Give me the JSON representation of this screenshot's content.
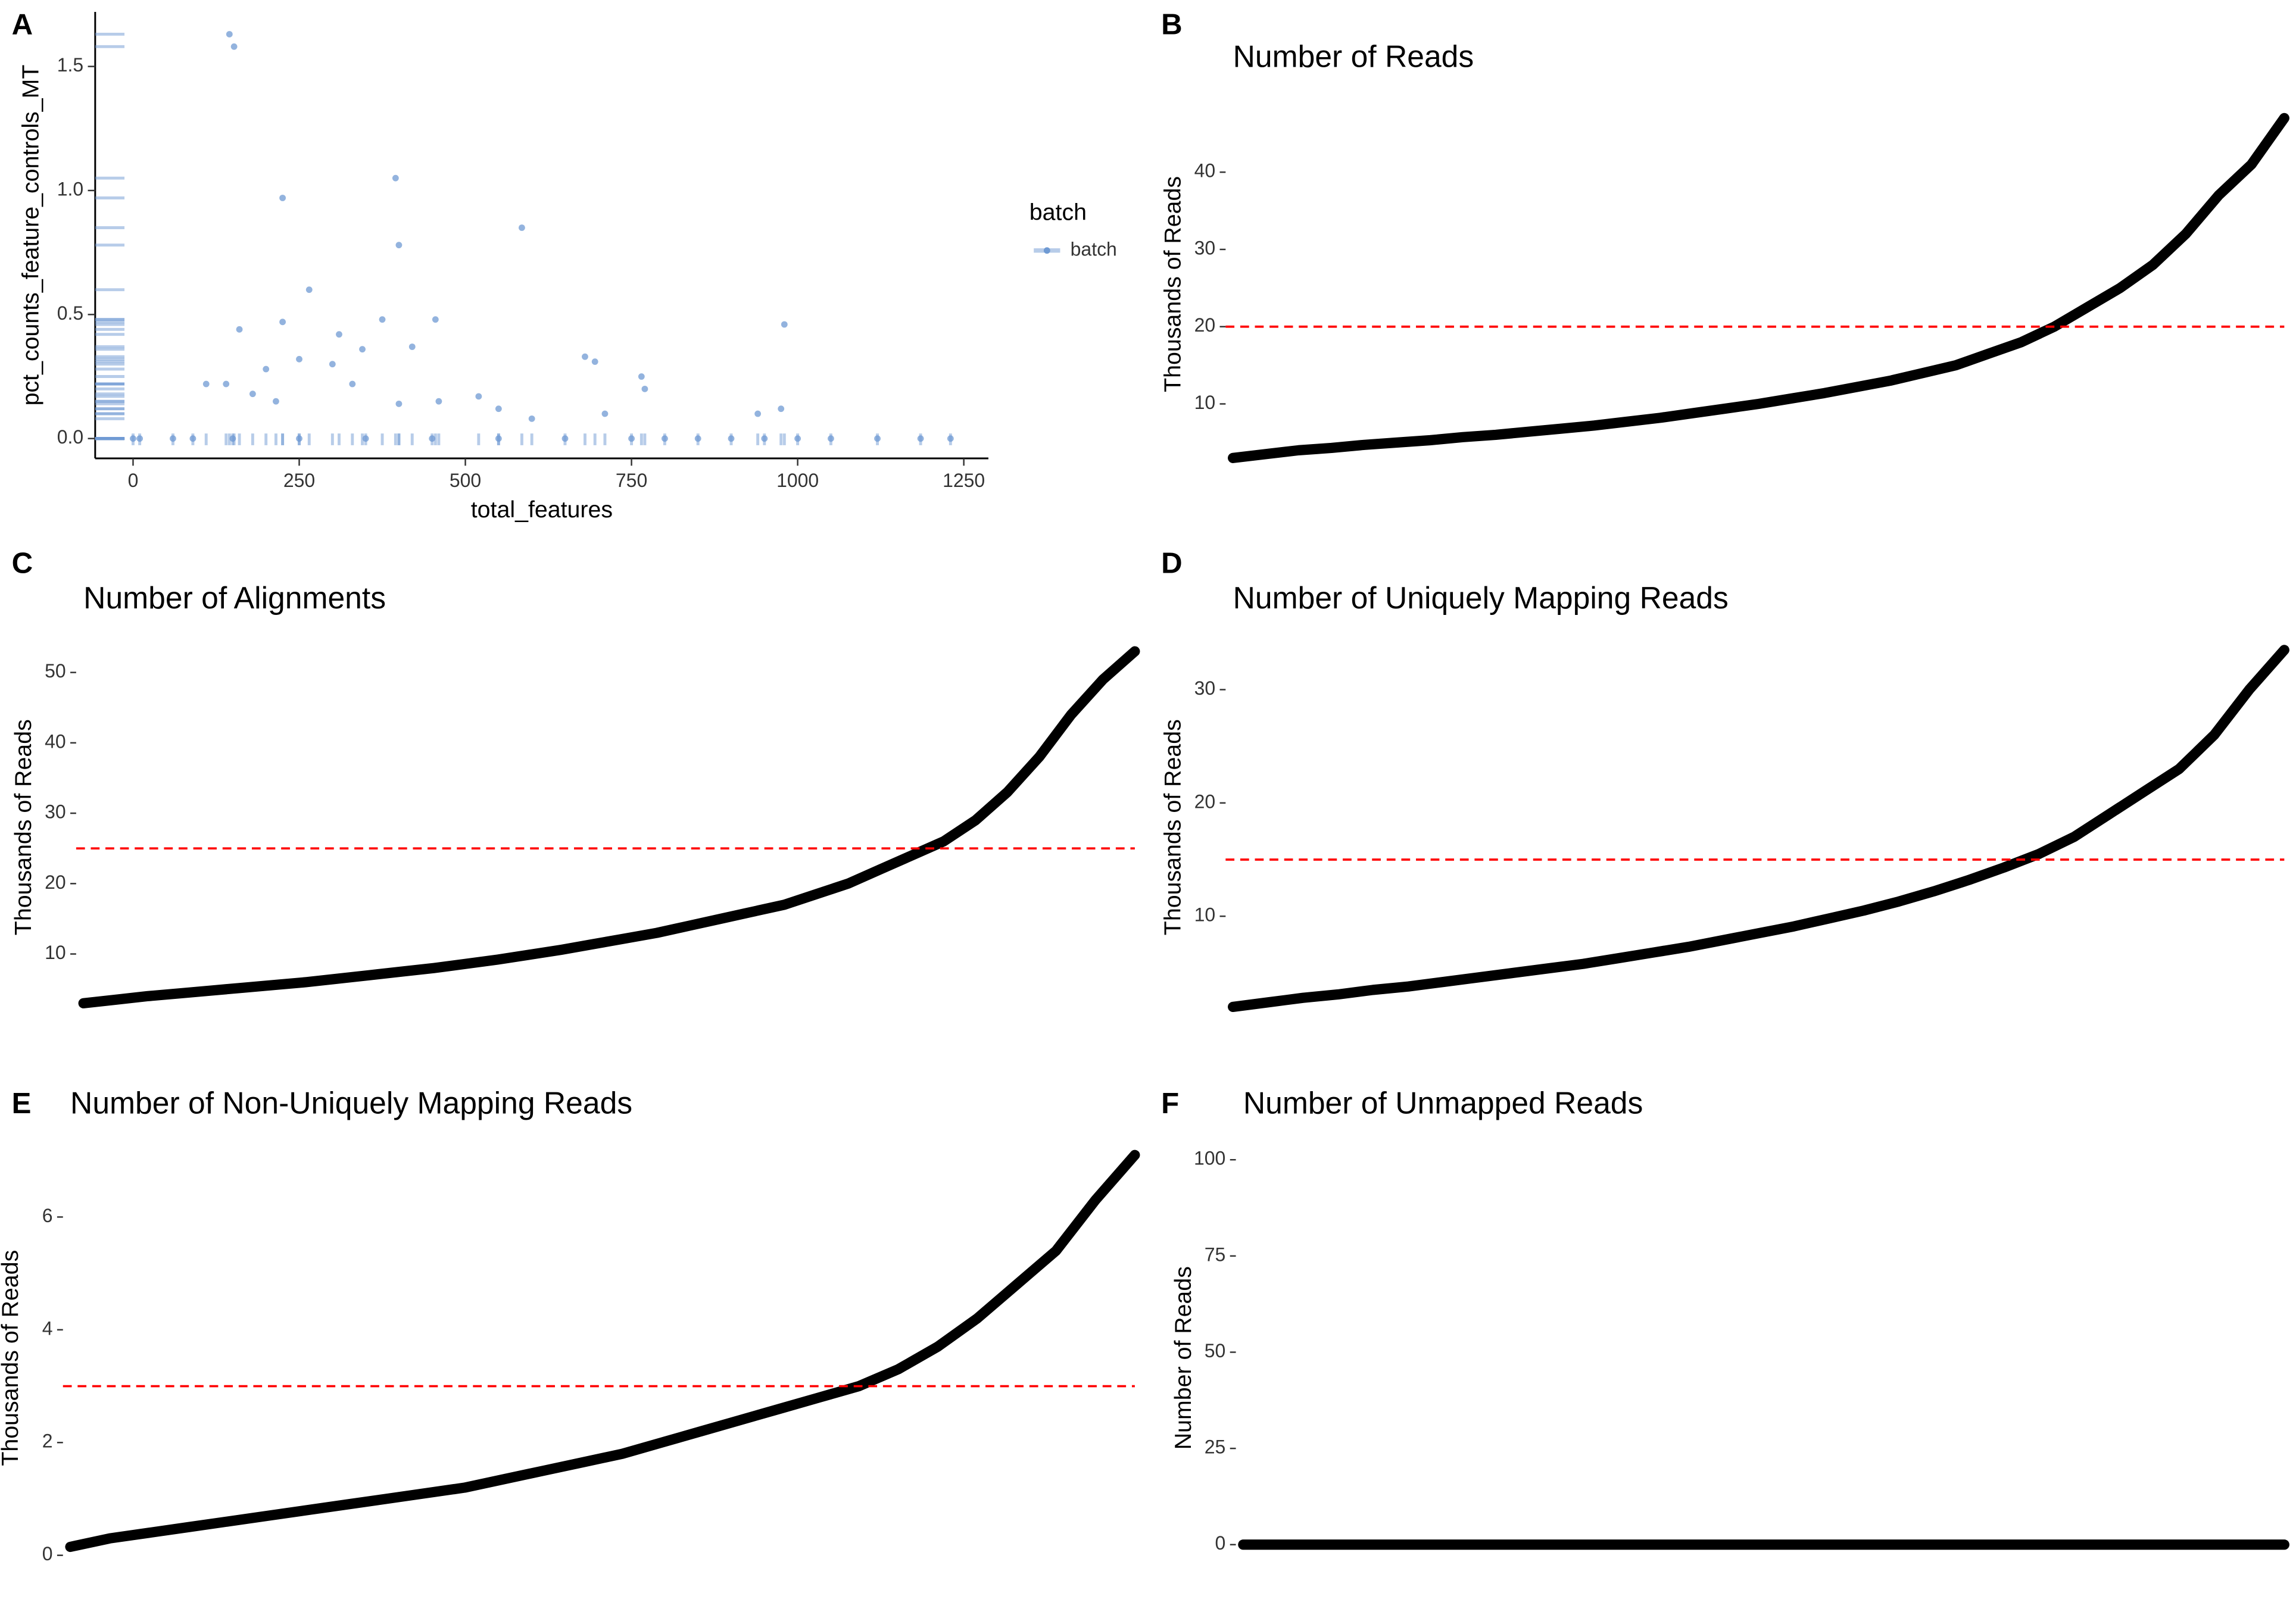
{
  "chart_data": [
    {
      "type": "scatter",
      "panel": "A",
      "xlabel": "total_features",
      "ylabel": "pct_counts_feature_controls_MT",
      "legend_title": "batch",
      "legend": "right",
      "xlim": [
        -57,
        1287
      ],
      "xticks": [
        0,
        250,
        500,
        750,
        1000,
        1250
      ],
      "ylim": [
        -0.08,
        1.72
      ],
      "yticks": [
        {
          "value": 0,
          "label": "0.0"
        },
        0.5,
        {
          "value": 1,
          "label": "1.0"
        },
        1.5
      ],
      "series": [
        {
          "name": "batch",
          "color": "#6f9ad3",
          "x": [
            145,
            152,
            225,
            395,
            400,
            585,
            265,
            980,
            160,
            375,
            455,
            225,
            310,
            345,
            420,
            680,
            695,
            765,
            770,
            300,
            250,
            200,
            110,
            140,
            180,
            215,
            330,
            400,
            460,
            520,
            550,
            600,
            940,
            975,
            710,
            0,
            10,
            60,
            90,
            150,
            250,
            350,
            450,
            550,
            650,
            750,
            800,
            850,
            900,
            950,
            1000,
            1050,
            1120,
            1185,
            1230
          ],
          "values": [
            1.63,
            1.58,
            0.97,
            1.05,
            0.78,
            0.85,
            0.6,
            0.46,
            0.44,
            0.48,
            0.48,
            0.47,
            0.42,
            0.36,
            0.37,
            0.33,
            0.31,
            0.25,
            0.2,
            0.3,
            0.32,
            0.28,
            0.22,
            0.22,
            0.18,
            0.15,
            0.22,
            0.14,
            0.15,
            0.17,
            0.12,
            0.08,
            0.1,
            0.12,
            0.1,
            0,
            0,
            0,
            0,
            0,
            0,
            0,
            0,
            0,
            0,
            0,
            0,
            0,
            0,
            0,
            0,
            0,
            0,
            0,
            0
          ]
        }
      ]
    },
    {
      "type": "line",
      "panel": "B",
      "title": "Number of Reads",
      "ylabel": "Thousands of Reads",
      "color": "#000000",
      "threshold": 20,
      "threshold_color": "#ff0000",
      "ylim": [
        2,
        49
      ],
      "yticks": [
        10,
        20,
        30,
        40
      ],
      "values": [
        3,
        3.5,
        4,
        4.3,
        4.7,
        5,
        5.3,
        5.7,
        6,
        6.4,
        6.8,
        7.2,
        7.7,
        8.2,
        8.8,
        9.4,
        10,
        10.7,
        11.4,
        12.2,
        13,
        14,
        15,
        16.5,
        18,
        20,
        22.5,
        25,
        28,
        32,
        37,
        41,
        47
      ]
    },
    {
      "type": "line",
      "panel": "C",
      "title": "Number of Alignments",
      "ylabel": "Thousands of Reads",
      "color": "#000000",
      "threshold": 25,
      "threshold_color": "#ff0000",
      "ylim": [
        2,
        54
      ],
      "yticks": [
        10,
        20,
        30,
        40,
        50
      ],
      "values": [
        3,
        3.5,
        4,
        4.4,
        4.8,
        5.2,
        5.6,
        6,
        6.5,
        7,
        7.5,
        8,
        8.6,
        9.2,
        9.9,
        10.6,
        11.4,
        12.2,
        13,
        14,
        15,
        16,
        17,
        18.5,
        20,
        22,
        24,
        26,
        29,
        33,
        38,
        44,
        49,
        53
      ]
    },
    {
      "type": "line",
      "panel": "D",
      "title": "Number of Uniquely Mapping Reads",
      "ylabel": "Thousands of Reads",
      "color": "#000000",
      "threshold": 15,
      "threshold_color": "#ff0000",
      "ylim": [
        1.7,
        34
      ],
      "yticks": [
        10,
        20,
        30
      ],
      "values": [
        2,
        2.4,
        2.8,
        3.1,
        3.5,
        3.8,
        4.2,
        4.6,
        5,
        5.4,
        5.8,
        6.3,
        6.8,
        7.3,
        7.9,
        8.5,
        9.1,
        9.8,
        10.5,
        11.3,
        12.2,
        13.2,
        14.3,
        15.5,
        17,
        19,
        21,
        23,
        26,
        30,
        33.5
      ]
    },
    {
      "type": "line",
      "panel": "E",
      "title": "Number of Non-Uniquely Mapping Reads",
      "ylabel": "Thousands of Reads",
      "color": "#000000",
      "threshold": 3,
      "threshold_color": "#ff0000",
      "ylim": [
        -0.2,
        7.2
      ],
      "yticks": [
        0,
        2,
        4,
        6
      ],
      "values": [
        0.15,
        0.3,
        0.4,
        0.5,
        0.6,
        0.7,
        0.8,
        0.9,
        1.0,
        1.1,
        1.2,
        1.35,
        1.5,
        1.65,
        1.8,
        2.0,
        2.2,
        2.4,
        2.6,
        2.8,
        3.0,
        3.3,
        3.7,
        4.2,
        4.8,
        5.4,
        6.3,
        7.1
      ]
    },
    {
      "type": "line",
      "panel": "F",
      "title": "Number of Unmapped Reads",
      "ylabel": "Number of Reads",
      "color": "#000000",
      "ylim": [
        -5.7,
        102.7
      ],
      "yticks": [
        0,
        25,
        50,
        75,
        100
      ],
      "values": [
        0,
        0,
        0,
        0,
        0,
        0,
        0,
        0,
        0,
        0,
        0,
        0,
        0,
        0,
        0,
        0,
        0,
        0,
        0,
        0
      ]
    }
  ]
}
